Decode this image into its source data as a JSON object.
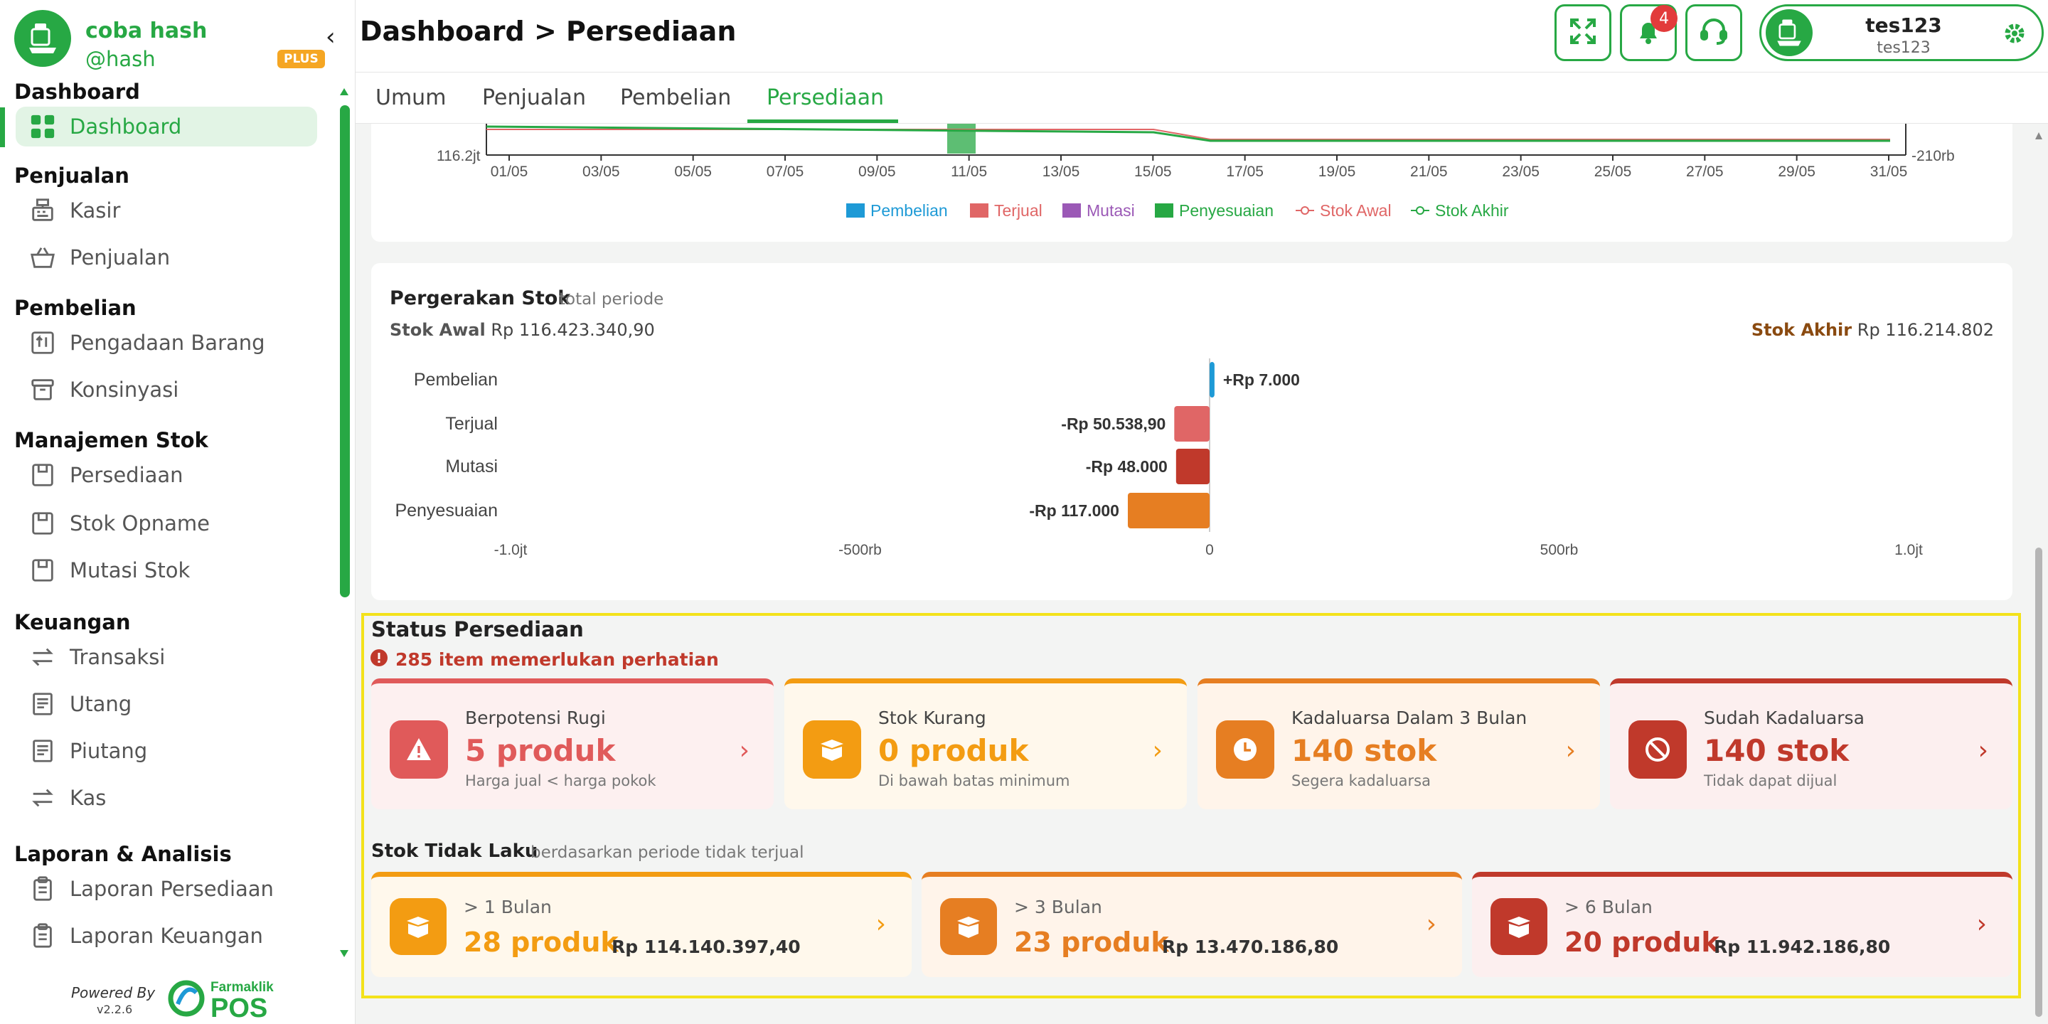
{
  "sidebar": {
    "brand_name": "coba hash",
    "handle": "@hash",
    "plan": "PLUS",
    "sections": [
      {
        "title": "Dashboard",
        "items": [
          {
            "label": "Dashboard",
            "icon": "grid-icon"
          }
        ]
      },
      {
        "title": "Penjualan",
        "items": [
          {
            "label": "Kasir",
            "icon": "cash-register-icon"
          },
          {
            "label": "Penjualan",
            "icon": "basket-icon"
          }
        ]
      },
      {
        "title": "Pembelian",
        "items": [
          {
            "label": "Pengadaan Barang",
            "icon": "inbox-upload-icon"
          },
          {
            "label": "Konsinyasi",
            "icon": "archive-box-icon"
          }
        ]
      },
      {
        "title": "Manajemen Stok",
        "items": [
          {
            "label": "Persediaan",
            "icon": "box-icon"
          },
          {
            "label": "Stok Opname",
            "icon": "box-icon"
          },
          {
            "label": "Mutasi Stok",
            "icon": "box-icon"
          }
        ]
      },
      {
        "title": "Keuangan",
        "items": [
          {
            "label": "Transaksi",
            "icon": "transfer-arrows-icon"
          },
          {
            "label": "Utang",
            "icon": "receipt-icon"
          },
          {
            "label": "Piutang",
            "icon": "receipt-icon"
          },
          {
            "label": "Kas",
            "icon": "transfer-arrows-icon"
          }
        ]
      },
      {
        "title": "Laporan & Analisis",
        "items": [
          {
            "label": "Laporan Persediaan",
            "icon": "clipboard-icon"
          },
          {
            "label": "Laporan Keuangan",
            "icon": "clipboard-icon"
          }
        ]
      }
    ],
    "powered_by": "Powered By",
    "version": "v2.2.6",
    "logo_top": "Farmaklik",
    "logo_bottom": "POS"
  },
  "header": {
    "title": "Dashboard > Persediaan",
    "notification_count": "4",
    "user_name": "tes123",
    "user_sub": "tes123"
  },
  "tabs": [
    "Umum",
    "Penjualan",
    "Pembelian",
    "Persediaan"
  ],
  "top_chart": {
    "y_left_tick": "116.2jt",
    "y_right_tick": "-210rb",
    "x_ticks": [
      "01/05",
      "03/05",
      "05/05",
      "07/05",
      "09/05",
      "11/05",
      "13/05",
      "15/05",
      "17/05",
      "19/05",
      "21/05",
      "23/05",
      "25/05",
      "27/05",
      "29/05",
      "31/05"
    ],
    "legend": [
      {
        "label": "Pembelian",
        "color": "#1e9ad6",
        "marker": "box"
      },
      {
        "label": "Terjual",
        "color": "#e06666",
        "marker": "box"
      },
      {
        "label": "Mutasi",
        "color": "#9b59b6",
        "marker": "box"
      },
      {
        "label": "Penyesuaian",
        "color": "#27a844",
        "marker": "box"
      },
      {
        "label": "Stok Awal",
        "color": "#e06666",
        "marker": "line"
      },
      {
        "label": "Stok Akhir",
        "color": "#27a844",
        "marker": "line"
      }
    ]
  },
  "chart_data": {
    "type": "bar",
    "orientation": "horizontal",
    "title": "Pergerakan Stok",
    "subtitle": "total periode",
    "stok_awal_label": "Stok Awal",
    "stok_awal_value": "Rp 116.423.340,90",
    "stok_akhir_label": "Stok Akhir",
    "stok_akhir_value": "Rp 116.214.802",
    "categories": [
      "Pembelian",
      "Terjual",
      "Mutasi",
      "Penyesuaian"
    ],
    "values": [
      7000,
      -50538.9,
      -48000,
      -117000
    ],
    "value_labels": [
      "+Rp 7.000",
      "-Rp 50.538,90",
      "-Rp 48.000",
      "-Rp 117.000"
    ],
    "colors": [
      "#1e9ad6",
      "#e06666",
      "#c0392b",
      "#e67e22"
    ],
    "xlim": [
      -1000000,
      1000000
    ],
    "x_ticks": [
      {
        "value": -1000000,
        "label": "-1.0jt"
      },
      {
        "value": -500000,
        "label": "-500rb"
      },
      {
        "value": 0,
        "label": "0"
      },
      {
        "value": 500000,
        "label": "500rb"
      },
      {
        "value": 1000000,
        "label": "1.0jt"
      }
    ]
  },
  "status": {
    "title": "Status Persediaan",
    "alert": "285 item memerlukan perhatian",
    "cards": [
      {
        "title": "Berpotensi Rugi",
        "value": "5 produk",
        "desc": "Harga jual < harga pokok",
        "color": "#e05a5a",
        "bg": "#fdf0f0",
        "icon": "warning-icon"
      },
      {
        "title": "Stok Kurang",
        "value": "0 produk",
        "desc": "Di bawah batas minimum",
        "color": "#f39c12",
        "bg": "#fff8ec",
        "icon": "open-box-icon"
      },
      {
        "title": "Kadaluarsa Dalam 3 Bulan",
        "value": "140 stok",
        "desc": "Segera kadaluarsa",
        "color": "#e67e22",
        "bg": "#fff4ea",
        "icon": "clock-icon"
      },
      {
        "title": "Sudah Kadaluarsa",
        "value": "140 stok",
        "desc": "Tidak dapat dijual",
        "color": "#c0392b",
        "bg": "#fcefef",
        "icon": "ban-icon"
      }
    ]
  },
  "dead_stock": {
    "title": "Stok Tidak Laku",
    "subtitle": "berdasarkan periode tidak terjual",
    "cards": [
      {
        "period": "> 1 Bulan",
        "value": "28 produk",
        "amount": "Rp 114.140.397,40",
        "color": "#f39c12",
        "bg": "#fff8ec",
        "icon": "box-icon"
      },
      {
        "period": "> 3 Bulan",
        "value": "23 produk",
        "amount": "Rp 13.470.186,80",
        "color": "#e67e22",
        "bg": "#fff4ea",
        "icon": "box-icon"
      },
      {
        "period": "> 6 Bulan",
        "value": "20 produk",
        "amount": "Rp 11.942.186,80",
        "color": "#c0392b",
        "bg": "#fcefef",
        "icon": "box-icon"
      }
    ]
  }
}
